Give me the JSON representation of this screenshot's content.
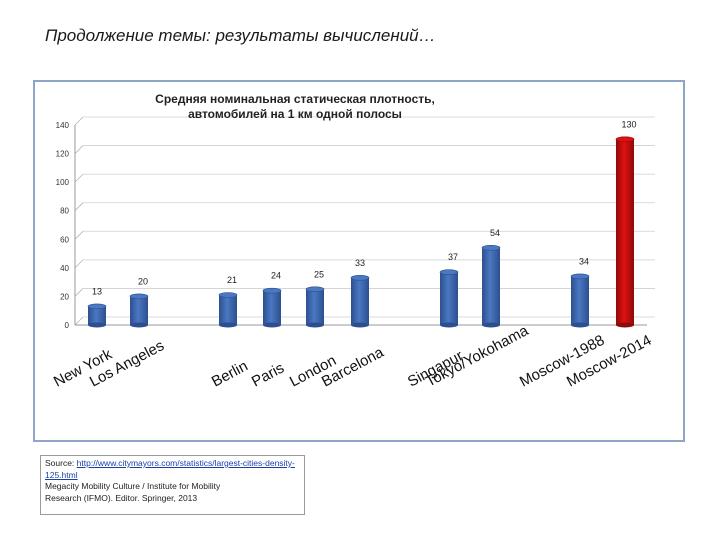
{
  "slide": {
    "title": "Продолжение темы: результаты вычислений…"
  },
  "source": {
    "prefix": "Source: ",
    "link_text": "http://www.citymayors.com/statistics/largest-cities-density-125.html",
    "line2": "Megacity Mobility Culture / Institute for Mobility",
    "line3": "Research (IFMO). Editor. Springer, 2013"
  },
  "colors": {
    "bar": "#4a78c2",
    "bar_dark": "#2c4f8f",
    "highlight": "#e01010",
    "highlight_dark": "#8f0a0a",
    "frame": "#8ea4c8"
  },
  "chart_data": {
    "type": "bar",
    "title_line1": "Средняя номинальная статическая плотность,",
    "title_line2": "автомобилей на 1 км одной полосы",
    "categories": [
      "New York",
      "Los Angeles",
      "Berlin",
      "Paris",
      "London",
      "Barcelona",
      "Singapur",
      "Tokyo/Yokohama",
      "Moscow-1988",
      "Moscow-2014"
    ],
    "values": [
      13,
      20,
      21,
      24,
      25,
      33,
      37,
      54,
      34,
      130
    ],
    "data_labels": [
      "13",
      "20",
      "21",
      "24",
      "25",
      "33",
      "37",
      "54",
      "34",
      "130"
    ],
    "highlight_index": 9,
    "yticks": [
      "0",
      "20",
      "40",
      "60",
      "80",
      "100",
      "120",
      "140"
    ],
    "ylim": [
      0,
      140
    ],
    "grid": true,
    "legend": "none"
  }
}
